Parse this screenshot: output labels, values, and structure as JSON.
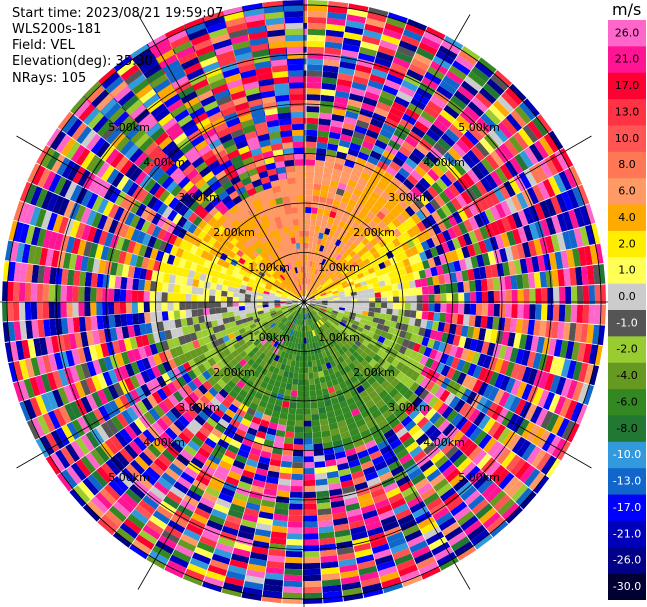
{
  "header": {
    "start_time": "Start time: 2023/08/21 19:59:07",
    "instrument": "WLS200s-181",
    "field": "Field: VEL",
    "elevation": "Elevation(deg): 35.30",
    "nrays": "NRays: 105"
  },
  "chart_data": {
    "type": "heatmap",
    "projection": "polar PPI (radar scan)",
    "field": "VEL",
    "units": "m/s",
    "elevation_deg": 35.3,
    "n_rays": 105,
    "range_ring_labels": [
      "1.00km",
      "2.00km",
      "3.00km",
      "4.00km",
      "5.00km"
    ],
    "range_rings_km": [
      1,
      2,
      3,
      4,
      5,
      6
    ],
    "max_range_km": 6.1,
    "sector_deg": [
      -50,
      360
    ],
    "colorbar": {
      "unit_label": "m/s",
      "tick_labels": [
        "26.0",
        "21.0",
        "17.0",
        "13.0",
        "10.0",
        "8.0",
        "6.0",
        "4.0",
        "2.0",
        "1.0",
        "0.0",
        "-1.0",
        "-2.0",
        "-4.0",
        "-6.0",
        "-8.0",
        "-10.0",
        "-13.0",
        "-17.0",
        "-21.0",
        "-26.0",
        "-30.0"
      ],
      "colors": [
        "#ff66cc",
        "#ff1493",
        "#ff0033",
        "#ff3344",
        "#ff5555",
        "#ff7755",
        "#ff9966",
        "#ffaa00",
        "#ffee00",
        "#ffff55",
        "#cccccc",
        "#555555",
        "#99cc33",
        "#669922",
        "#338822",
        "#227733",
        "#3399dd",
        "#1166cc",
        "#0000ff",
        "#0000bb",
        "#000088",
        "#000033"
      ]
    },
    "patterns": {
      "near_north": "positive (yellow/orange, up to ~8 m/s) within ~2.7 km",
      "near_south": "negative (green to blue, down to ~-10 m/s) within ~2.7 km",
      "east_west_axis": "near 0 (grey)",
      "far_range": "noisy, full colour range"
    }
  }
}
